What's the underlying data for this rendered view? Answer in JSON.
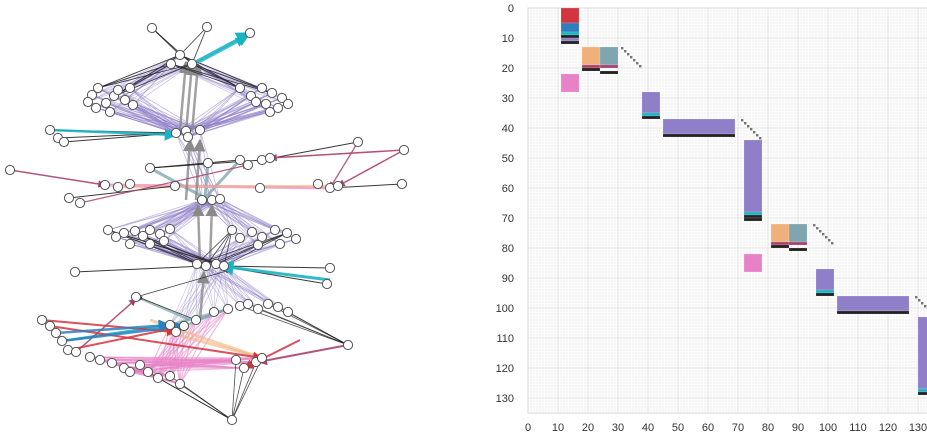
{
  "colors": {
    "purple": "#8f7fc8",
    "gray": "#8a8a8a",
    "black": "#222222",
    "teal": "#19b4c4",
    "slate": "#7aa3ab",
    "magenta": "#a8426f",
    "pink": "#e882c6",
    "orange": "#f0b07a",
    "red": "#d4343d",
    "blue": "#2f7fbf",
    "node_fill": "#ffffff",
    "node_stroke": "#555555",
    "grid": "#e6e6e6",
    "frame": "#cccccc"
  },
  "matrix": {
    "y_ticks": [
      "0",
      "10",
      "20",
      "30",
      "40",
      "50",
      "60",
      "70",
      "80",
      "90",
      "100",
      "110",
      "120",
      "130"
    ],
    "x_ticks": [
      "0",
      "10",
      "20",
      "30",
      "40",
      "50",
      "60",
      "70",
      "80",
      "90",
      "100",
      "110",
      "120",
      "130"
    ]
  }
}
